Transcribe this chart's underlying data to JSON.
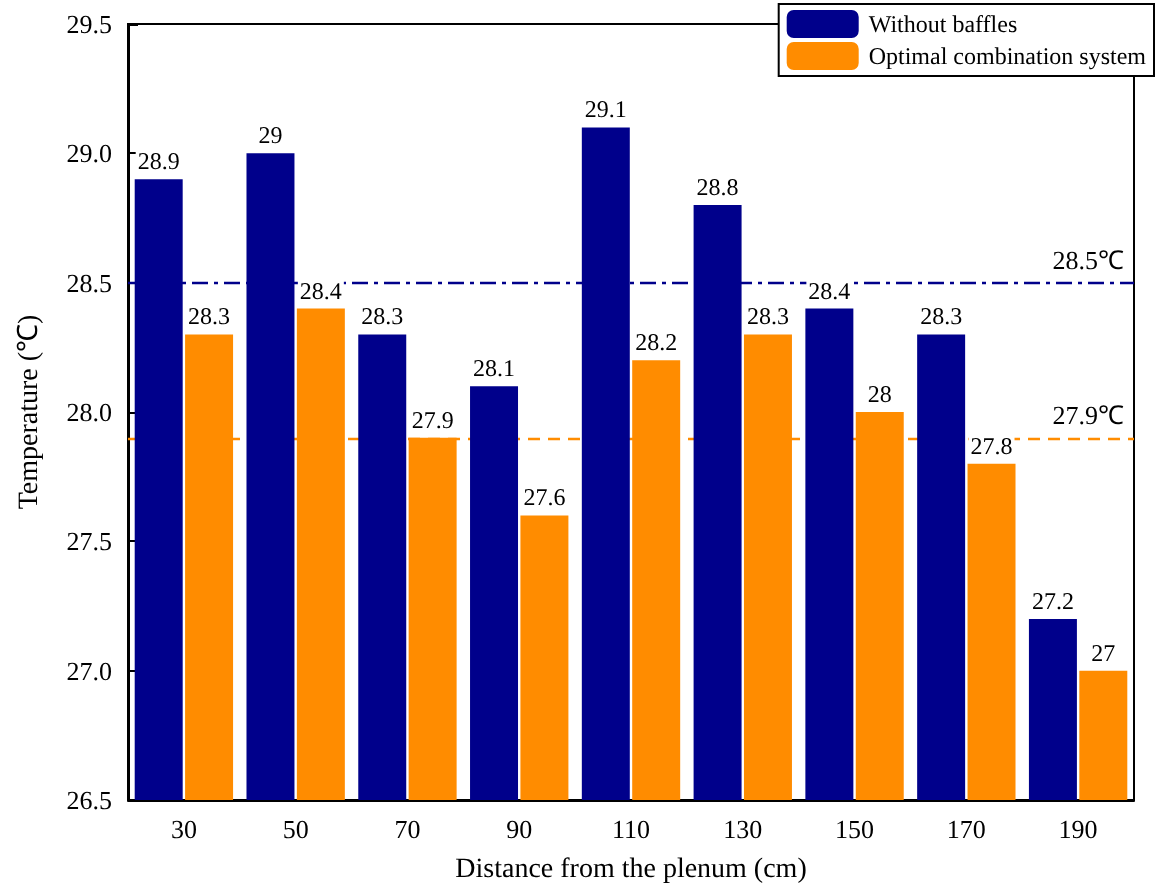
{
  "chart_data": {
    "type": "bar",
    "xlabel": "Distance from the plenum (cm)",
    "ylabel": "Temperature (℃)",
    "categories": [
      "30",
      "50",
      "70",
      "90",
      "110",
      "130",
      "150",
      "170",
      "190"
    ],
    "series": [
      {
        "name": "Without baffles",
        "color": "#00008b",
        "values": [
          28.9,
          29,
          28.3,
          28.1,
          29.1,
          28.8,
          28.4,
          28.3,
          27.2
        ]
      },
      {
        "name": "Optimal combination system",
        "color": "#ff8c00",
        "values": [
          28.3,
          28.4,
          27.9,
          27.6,
          28.2,
          28.3,
          28,
          27.8,
          27
        ]
      }
    ],
    "ylim": [
      26.5,
      29.5
    ],
    "yticks": [
      26.5,
      {
        "value": 27,
        "label": "27.0"
      },
      27.5,
      {
        "value": 28,
        "label": "28.0"
      },
      28.5,
      {
        "value": 29,
        "label": "29.0"
      },
      29.5
    ],
    "ref_lines": [
      {
        "axis": "y",
        "value": 28.5,
        "label": "28.5℃",
        "color": "#00008b",
        "line_style": "dashdot"
      },
      {
        "axis": "y",
        "value": 27.9,
        "label": "27.9℃",
        "color": "#ff8c00",
        "line_style": "dashed"
      }
    ],
    "data_labels": true,
    "legend": "top right",
    "grid": false
  }
}
